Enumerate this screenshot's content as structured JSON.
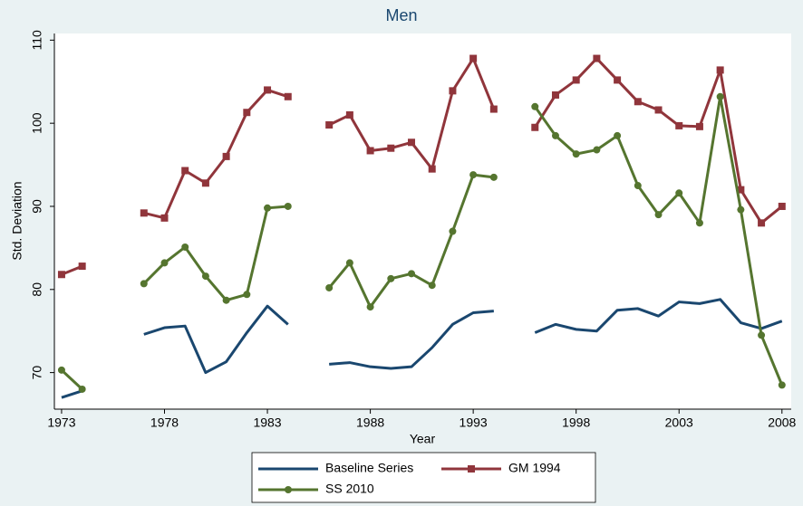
{
  "chart_data": {
    "type": "line",
    "title": "Men",
    "xlabel": "Year",
    "ylabel": "Std. Deviation",
    "x": [
      1973,
      1974,
      1975,
      1976,
      1977,
      1978,
      1979,
      1980,
      1981,
      1982,
      1983,
      1984,
      1985,
      1986,
      1987,
      1988,
      1989,
      1990,
      1991,
      1992,
      1993,
      1994,
      1995,
      1996,
      1997,
      1998,
      1999,
      2000,
      2001,
      2002,
      2003,
      2004,
      2005,
      2006,
      2007,
      2008
    ],
    "series": [
      {
        "name": "Baseline Series",
        "color": "#1a476f",
        "marker": "none",
        "values": [
          67,
          67.8,
          null,
          null,
          74.6,
          75.4,
          75.6,
          70,
          71.3,
          74.8,
          78,
          75.8,
          null,
          71,
          71.2,
          70.7,
          70.5,
          70.7,
          73,
          75.8,
          77.2,
          77.4,
          null,
          74.8,
          75.8,
          75.2,
          75,
          77.5,
          77.7,
          76.8,
          78.5,
          78.3,
          78.8,
          76,
          75.3,
          76.2
        ]
      },
      {
        "name": "GM 1994",
        "color": "#90353b",
        "marker": "square",
        "values": [
          81.8,
          82.8,
          null,
          null,
          89.2,
          88.6,
          94.3,
          92.8,
          96,
          101.3,
          104,
          103.2,
          null,
          99.8,
          101,
          96.7,
          97,
          97.7,
          94.5,
          103.9,
          107.8,
          101.7,
          null,
          99.5,
          103.4,
          105.2,
          107.8,
          105.2,
          102.6,
          101.6,
          99.7,
          99.6,
          106.4,
          92,
          88,
          90
        ]
      },
      {
        "name": "SS 2010",
        "color": "#55752f",
        "marker": "circle",
        "values": [
          70.3,
          68,
          null,
          null,
          80.7,
          83.2,
          85.1,
          81.6,
          78.7,
          79.4,
          89.8,
          90,
          null,
          80.2,
          83.2,
          77.9,
          81.3,
          81.9,
          80.5,
          87,
          93.8,
          93.5,
          null,
          102,
          98.5,
          96.3,
          96.8,
          98.5,
          92.5,
          89,
          91.6,
          88,
          103.2,
          89.6,
          74.5,
          68.5
        ]
      }
    ],
    "xlim": [
      1972.65,
      2008.45
    ],
    "xticks": [
      1973,
      1978,
      1983,
      1988,
      1993,
      1998,
      2003,
      2008
    ],
    "ylim": [
      65.6,
      110.8
    ],
    "yticks": [
      70,
      80,
      90,
      100,
      110
    ],
    "grid": false,
    "legend": "bottom"
  }
}
